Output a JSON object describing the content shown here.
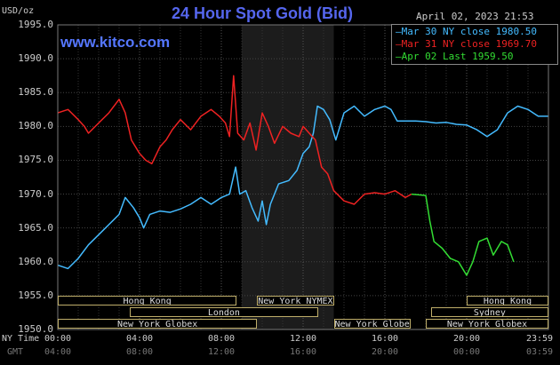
{
  "header": {
    "title": "24 Hour Spot Gold (Bid)",
    "brand": "www.kitco.com",
    "datetime": "April 02, 2023 21:53",
    "unit": "USD/oz"
  },
  "legend": [
    {
      "label": "Mar 30 NY close 1980.50",
      "color": "#44bbff"
    },
    {
      "label": "Mar 31 NY close 1969.70",
      "color": "#ee2222"
    },
    {
      "label": "Apr 02 Last 1959.50",
      "color": "#33dd33"
    }
  ],
  "sessions": [
    {
      "label": "Hong Kong",
      "start": 0,
      "end": 8.75
    },
    {
      "label": "London",
      "start": 3.5,
      "end": 12.75
    },
    {
      "label": "New York Globex",
      "start": 0,
      "end": 9.75
    },
    {
      "label": "New York NYMEX",
      "start": 9.75,
      "end": 13.5
    },
    {
      "label": "New York Globex",
      "start": 13.5,
      "end": 17.25
    },
    {
      "label": "Hong Kong",
      "start": 20,
      "end": 24
    },
    {
      "label": "Sydney",
      "start": 18.25,
      "end": 24
    },
    {
      "label": "New York Globex",
      "start": 18,
      "end": 24
    }
  ],
  "x_axis": {
    "row1_label": "NY Time",
    "row2_label": "GMT",
    "ny_ticks": [
      "00:00",
      "04:00",
      "08:00",
      "12:00",
      "16:00",
      "20:00",
      "23:59"
    ],
    "gmt_ticks": [
      "04:00",
      "08:00",
      "12:00",
      "16:00",
      "20:00",
      "00:00",
      "03:59"
    ]
  },
  "chart_data": {
    "type": "line",
    "title": "24 Hour Spot Gold (Bid)",
    "ylabel": "USD/oz",
    "xlabel": "NY Time",
    "ylim": [
      1950,
      1995
    ],
    "yticks": [
      1950,
      1955,
      1960,
      1965,
      1970,
      1975,
      1980,
      1985,
      1990,
      1995
    ],
    "xlim": [
      0,
      24
    ],
    "shaded_band": [
      9,
      13.5
    ],
    "series": [
      {
        "name": "Mar 30 NY close 1980.50",
        "color": "#44bbff",
        "points": [
          [
            0,
            1959.5
          ],
          [
            0.5,
            1959
          ],
          [
            1,
            1960.5
          ],
          [
            1.5,
            1962.5
          ],
          [
            2,
            1964
          ],
          [
            2.5,
            1965.5
          ],
          [
            3,
            1967
          ],
          [
            3.3,
            1969.5
          ],
          [
            3.7,
            1968
          ],
          [
            4,
            1966.5
          ],
          [
            4.2,
            1965
          ],
          [
            4.5,
            1967
          ],
          [
            5,
            1967.5
          ],
          [
            5.5,
            1967.3
          ],
          [
            6,
            1967.8
          ],
          [
            6.5,
            1968.5
          ],
          [
            7,
            1969.5
          ],
          [
            7.5,
            1968.5
          ],
          [
            8,
            1969.5
          ],
          [
            8.4,
            1970
          ],
          [
            8.7,
            1974
          ],
          [
            8.9,
            1970
          ],
          [
            9.2,
            1970.5
          ],
          [
            9.5,
            1968
          ],
          [
            9.8,
            1966
          ],
          [
            10,
            1969
          ],
          [
            10.2,
            1965.5
          ],
          [
            10.4,
            1968.5
          ],
          [
            10.8,
            1971.5
          ],
          [
            11.3,
            1972
          ],
          [
            11.7,
            1973.5
          ],
          [
            12,
            1976
          ],
          [
            12.3,
            1977
          ],
          [
            12.5,
            1979
          ],
          [
            12.7,
            1983
          ],
          [
            13,
            1982.5
          ],
          [
            13.3,
            1981
          ],
          [
            13.6,
            1978
          ],
          [
            14,
            1982
          ],
          [
            14.5,
            1983
          ],
          [
            15,
            1981.5
          ],
          [
            15.5,
            1982.5
          ],
          [
            16,
            1983
          ],
          [
            16.3,
            1982.5
          ],
          [
            16.6,
            1980.8
          ],
          [
            17.5,
            1980.8
          ],
          [
            18,
            1980.7
          ],
          [
            18.5,
            1980.5
          ],
          [
            19,
            1980.6
          ],
          [
            19.5,
            1980.3
          ],
          [
            20,
            1980.2
          ],
          [
            20.5,
            1979.5
          ],
          [
            21,
            1978.5
          ],
          [
            21.5,
            1979.5
          ],
          [
            22,
            1982
          ],
          [
            22.5,
            1983
          ],
          [
            23,
            1982.5
          ],
          [
            23.5,
            1981.5
          ],
          [
            24,
            1981.5
          ]
        ]
      },
      {
        "name": "Mar 31 NY close 1969.70",
        "color": "#ee2222",
        "points": [
          [
            0,
            1982
          ],
          [
            0.5,
            1982.5
          ],
          [
            1,
            1981
          ],
          [
            1.3,
            1980
          ],
          [
            1.5,
            1979
          ],
          [
            2,
            1980.5
          ],
          [
            2.5,
            1982
          ],
          [
            3,
            1984
          ],
          [
            3.3,
            1982
          ],
          [
            3.6,
            1978
          ],
          [
            4,
            1976
          ],
          [
            4.3,
            1975
          ],
          [
            4.6,
            1974.5
          ],
          [
            5,
            1977
          ],
          [
            5.3,
            1978
          ],
          [
            5.6,
            1979.5
          ],
          [
            6,
            1981
          ],
          [
            6.5,
            1979.5
          ],
          [
            7,
            1981.5
          ],
          [
            7.5,
            1982.5
          ],
          [
            7.9,
            1981.5
          ],
          [
            8.2,
            1980.5
          ],
          [
            8.4,
            1978.5
          ],
          [
            8.6,
            1987.5
          ],
          [
            8.8,
            1979
          ],
          [
            9.1,
            1978
          ],
          [
            9.4,
            1980.5
          ],
          [
            9.7,
            1976.5
          ],
          [
            10,
            1982
          ],
          [
            10.3,
            1980
          ],
          [
            10.6,
            1977.5
          ],
          [
            11,
            1980
          ],
          [
            11.4,
            1979
          ],
          [
            11.8,
            1978.5
          ],
          [
            12,
            1980
          ],
          [
            12.3,
            1979
          ],
          [
            12.6,
            1978
          ],
          [
            12.9,
            1974
          ],
          [
            13.2,
            1973
          ],
          [
            13.5,
            1970.5
          ],
          [
            14,
            1969
          ],
          [
            14.5,
            1968.5
          ],
          [
            15,
            1970
          ],
          [
            15.5,
            1970.2
          ],
          [
            16,
            1970
          ],
          [
            16.5,
            1970.5
          ],
          [
            17,
            1969.5
          ],
          [
            17.3,
            1970
          ]
        ]
      },
      {
        "name": "Apr 02 Last 1959.50",
        "color": "#33dd33",
        "points": [
          [
            17.3,
            1970
          ],
          [
            18,
            1969.8
          ],
          [
            18.2,
            1966
          ],
          [
            18.4,
            1963
          ],
          [
            18.8,
            1962
          ],
          [
            19.2,
            1960.5
          ],
          [
            19.6,
            1960
          ],
          [
            20,
            1958
          ],
          [
            20.3,
            1960
          ],
          [
            20.6,
            1963
          ],
          [
            21,
            1963.5
          ],
          [
            21.3,
            1961
          ],
          [
            21.7,
            1963
          ],
          [
            22,
            1962.5
          ],
          [
            22.3,
            1960
          ]
        ]
      }
    ]
  }
}
